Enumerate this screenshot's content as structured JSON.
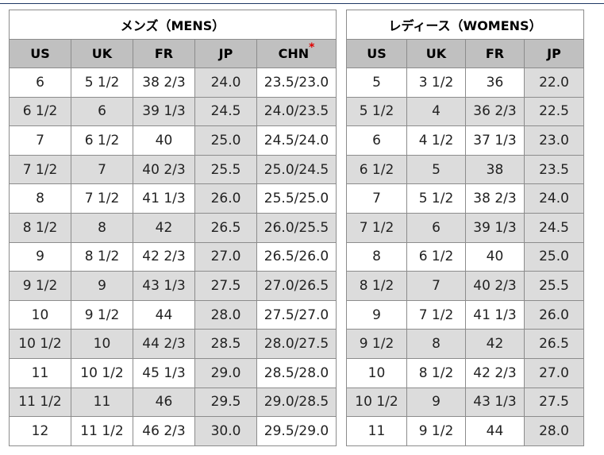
{
  "mens": {
    "title": "メンズ（MENS）",
    "headers": [
      "US",
      "UK",
      "FR",
      "JP",
      "CHN"
    ],
    "chn_marker": "*",
    "rows": [
      [
        "6",
        "5 1/2",
        "38 2/3",
        "24.0",
        "23.5/23.0"
      ],
      [
        "6 1/2",
        "6",
        "39 1/3",
        "24.5",
        "24.0/23.5"
      ],
      [
        "7",
        "6 1/2",
        "40",
        "25.0",
        "24.5/24.0"
      ],
      [
        "7 1/2",
        "7",
        "40 2/3",
        "25.5",
        "25.0/24.5"
      ],
      [
        "8",
        "7 1/2",
        "41 1/3",
        "26.0",
        "25.5/25.0"
      ],
      [
        "8 1/2",
        "8",
        "42",
        "26.5",
        "26.0/25.5"
      ],
      [
        "9",
        "8 1/2",
        "42 2/3",
        "27.0",
        "26.5/26.0"
      ],
      [
        "9 1/2",
        "9",
        "43 1/3",
        "27.5",
        "27.0/26.5"
      ],
      [
        "10",
        "9 1/2",
        "44",
        "28.0",
        "27.5/27.0"
      ],
      [
        "10 1/2",
        "10",
        "44 2/3",
        "28.5",
        "28.0/27.5"
      ],
      [
        "11",
        "10 1/2",
        "45 1/3",
        "29.0",
        "28.5/28.0"
      ],
      [
        "11 1/2",
        "11",
        "46",
        "29.5",
        "29.0/28.5"
      ],
      [
        "12",
        "11 1/2",
        "46 2/3",
        "30.0",
        "29.5/29.0"
      ]
    ]
  },
  "womens": {
    "title": "レディース（WOMENS）",
    "headers": [
      "US",
      "UK",
      "FR",
      "JP"
    ],
    "rows": [
      [
        "5",
        "3 1/2",
        "36",
        "22.0"
      ],
      [
        "5 1/2",
        "4",
        "36 2/3",
        "22.5"
      ],
      [
        "6",
        "4 1/2",
        "37 1/3",
        "23.0"
      ],
      [
        "6 1/2",
        "5",
        "38",
        "23.5"
      ],
      [
        "7",
        "5 1/2",
        "38 2/3",
        "24.0"
      ],
      [
        "7 1/2",
        "6",
        "39 1/3",
        "24.5"
      ],
      [
        "8",
        "6 1/2",
        "40",
        "25.0"
      ],
      [
        "8 1/2",
        "7",
        "40 2/3",
        "25.5"
      ],
      [
        "9",
        "7 1/2",
        "41 1/3",
        "26.0"
      ],
      [
        "9 1/2",
        "8",
        "42",
        "26.5"
      ],
      [
        "10",
        "8 1/2",
        "42 2/3",
        "27.0"
      ],
      [
        "10 1/2",
        "9",
        "43 1/3",
        "27.5"
      ],
      [
        "11",
        "9 1/2",
        "44",
        "28.0"
      ]
    ]
  },
  "colors": {
    "header_bg": "#c0c0c0",
    "alt_row_bg": "#dcdcdc",
    "border": "#8c8c8c",
    "asterisk": "#e00000"
  }
}
